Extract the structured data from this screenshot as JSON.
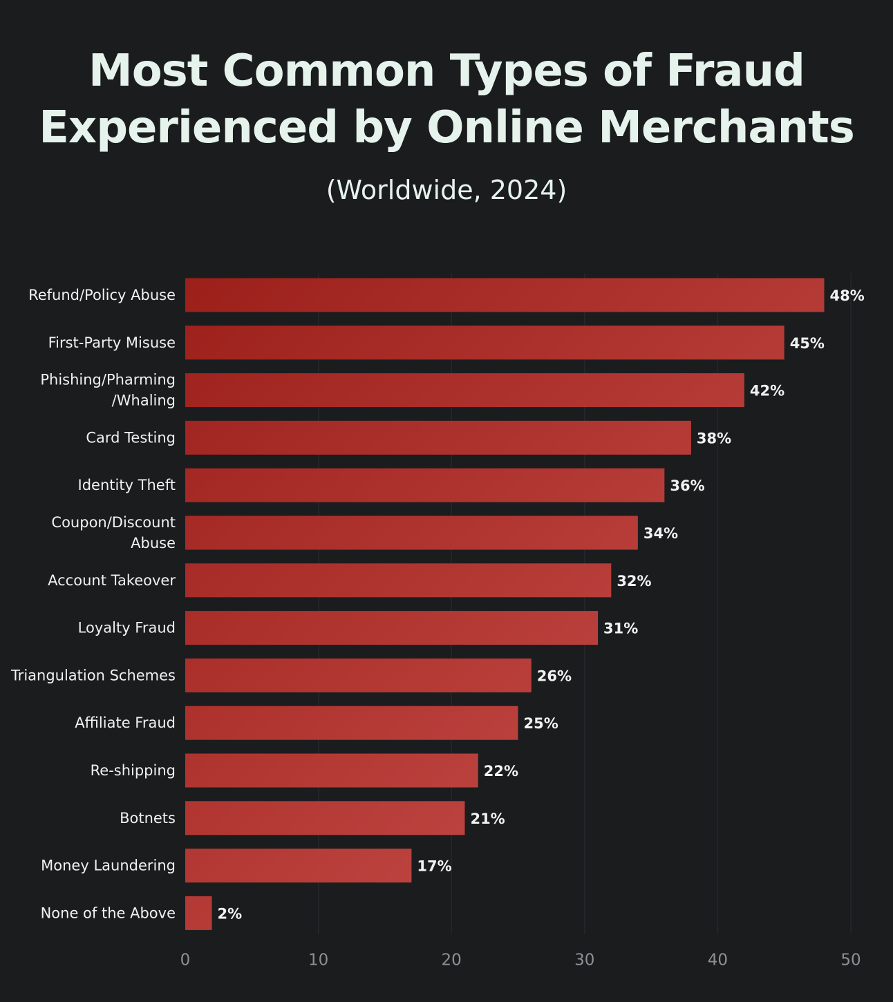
{
  "title": "Most Common Types of Fraud\nExperienced by Online Merchants",
  "subtitle": "(Worldwide, 2024)",
  "chart_data": {
    "type": "bar",
    "orientation": "horizontal",
    "categories": [
      "Refund/Policy Abuse",
      "First-Party Misuse",
      "Phishing/Pharming\n/Whaling",
      "Card Testing",
      "Identity Theft",
      "Coupon/Discount\nAbuse",
      "Account Takeover",
      "Loyalty Fraud",
      "Triangulation Schemes",
      "Affiliate Fraud",
      "Re-shipping",
      "Botnets",
      "Money Laundering",
      "None of the Above"
    ],
    "values": [
      48,
      45,
      42,
      38,
      36,
      34,
      32,
      31,
      26,
      25,
      22,
      21,
      17,
      2
    ],
    "data_labels": [
      "48%",
      "45%",
      "42%",
      "38%",
      "36%",
      "34%",
      "32%",
      "31%",
      "26%",
      "25%",
      "22%",
      "21%",
      "17%",
      "2%"
    ],
    "xlim": [
      0,
      50
    ],
    "x_ticks": [
      "0",
      "10",
      "20",
      "30",
      "40",
      "50"
    ],
    "grid": "vertical",
    "colors": {
      "bar_dark": "#9c1f1a",
      "bar_light": "#cd5552",
      "background": "#1b1c1e",
      "grid": "#26272a",
      "text": "#e6f3ec",
      "tick": "#8e9093"
    }
  }
}
